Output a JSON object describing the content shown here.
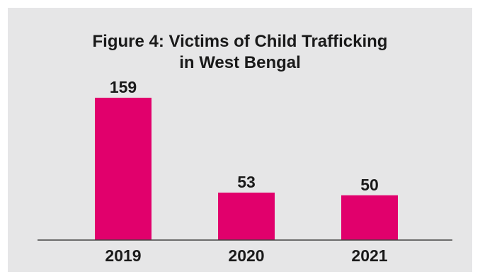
{
  "chart_data": {
    "type": "bar",
    "title_lines": [
      "Figure 4: Victims of Child Trafficking",
      "in West Bengal"
    ],
    "categories": [
      "2019",
      "2020",
      "2021"
    ],
    "values": [
      159,
      53,
      50
    ],
    "data_labels": [
      "159",
      "53",
      "50"
    ],
    "xlabel": "",
    "ylabel": "",
    "ylim": [
      0,
      159
    ],
    "grid": false,
    "legend": "none",
    "bar_color": "#e1006c",
    "axis_color": "#444444",
    "background_color": "#e6e6e7"
  }
}
